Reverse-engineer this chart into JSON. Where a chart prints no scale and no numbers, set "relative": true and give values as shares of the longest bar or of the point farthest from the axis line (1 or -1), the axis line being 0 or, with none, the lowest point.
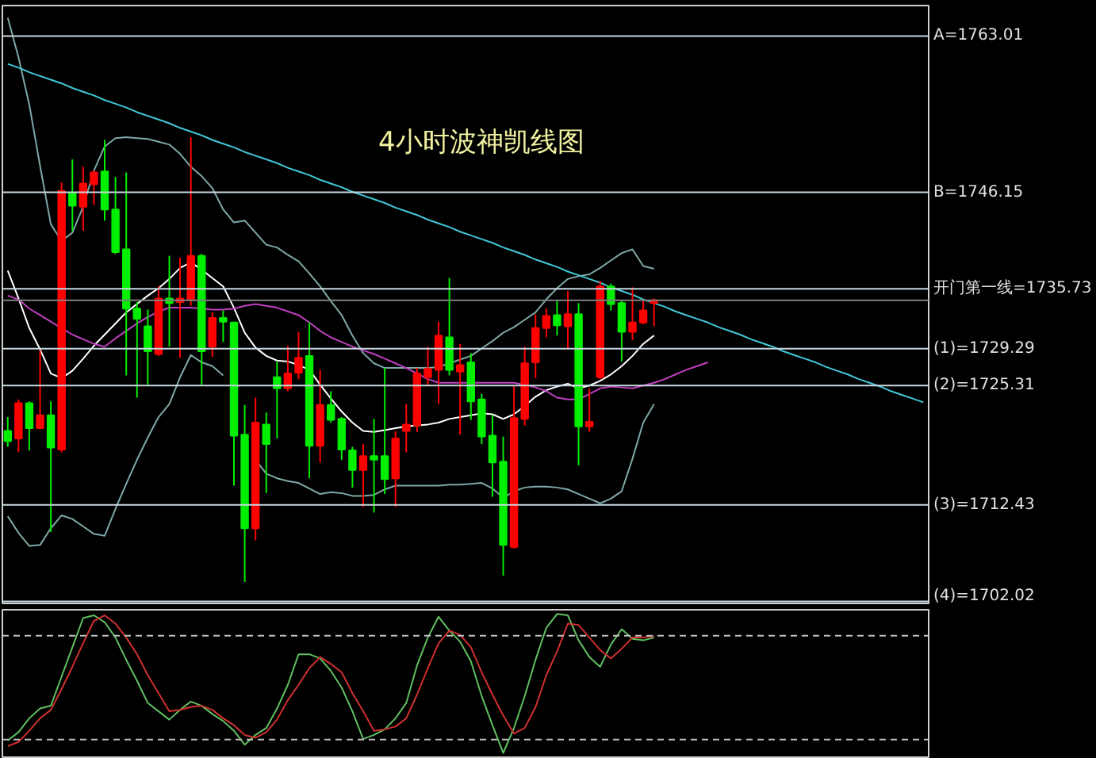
{
  "chart_data": [
    {
      "type": "candlestick",
      "title": "4小时波神凯线图",
      "categories": [
        null,
        null,
        null,
        null,
        null,
        null,
        null,
        null,
        null,
        null,
        null,
        null,
        null,
        null,
        null,
        null,
        null,
        null,
        null,
        null,
        null,
        null,
        null,
        null,
        null,
        null,
        null,
        null,
        null,
        null,
        null,
        null,
        null,
        null,
        null,
        null,
        null,
        null,
        null,
        null,
        null,
        null,
        null,
        null,
        null,
        null,
        null,
        null,
        null,
        null,
        null,
        null,
        null,
        null,
        null,
        null,
        null,
        null,
        null,
        null,
        null,
        null,
        null,
        null,
        null,
        null,
        null,
        null,
        null,
        null,
        null,
        null,
        null,
        null,
        null,
        null,
        null,
        null,
        null,
        null,
        null,
        null,
        null,
        null,
        null,
        null
      ],
      "ohlc": [
        [
          1720.4,
          1721.9,
          1718.7,
          1719.3
        ],
        [
          1719.6,
          1723.8,
          1718.1,
          1723.4
        ],
        [
          1723.4,
          1723.6,
          1718.3,
          1720.7
        ],
        [
          1720.7,
          1729.1,
          1720.6,
          1722.1
        ],
        [
          1722.1,
          1723.6,
          1709.5,
          1718.6
        ],
        [
          1718.4,
          1747.2,
          1718.1,
          1746.3
        ],
        [
          1746.1,
          1749.7,
          1742.0,
          1744.7
        ],
        [
          1744.6,
          1748.9,
          1742.0,
          1747.1
        ],
        [
          1747.0,
          1748.5,
          1744.8,
          1748.3
        ],
        [
          1748.4,
          1751.8,
          1743.1,
          1744.3
        ],
        [
          1744.3,
          1747.8,
          1739.5,
          1739.7
        ],
        [
          1740.0,
          1748.3,
          1726.4,
          1733.6
        ],
        [
          1733.6,
          1734.3,
          1724.0,
          1732.5
        ],
        [
          1731.7,
          1733.5,
          1725.4,
          1729.0
        ],
        [
          1728.7,
          1736.0,
          1728.5,
          1734.7
        ],
        [
          1734.7,
          1739.3,
          1729.5,
          1734.2
        ],
        [
          1734.3,
          1739.1,
          1728.3,
          1734.7
        ],
        [
          1734.6,
          1752.1,
          1733.9,
          1739.3
        ],
        [
          1739.3,
          1739.5,
          1725.4,
          1729.0
        ],
        [
          1729.5,
          1733.2,
          1728.4,
          1732.6
        ],
        [
          1732.6,
          1733.4,
          1730.0,
          1732.2
        ],
        [
          1732.1,
          1732.2,
          1714.5,
          1719.9
        ],
        [
          1720.0,
          1723.2,
          1704.1,
          1709.9
        ],
        [
          1709.9,
          1724.0,
          1708.6,
          1721.3
        ],
        [
          1721.1,
          1722.4,
          1713.7,
          1719.0
        ],
        [
          1726.2,
          1727.9,
          1719.6,
          1725.0
        ],
        [
          1725.0,
          1729.6,
          1724.7,
          1726.6
        ],
        [
          1726.7,
          1731.1,
          1726.0,
          1728.3
        ],
        [
          1728.5,
          1732.1,
          1715.3,
          1718.8
        ],
        [
          1718.8,
          1727.0,
          1717.0,
          1723.2
        ],
        [
          1723.2,
          1724.7,
          1721.3,
          1721.6
        ],
        [
          1721.7,
          1721.9,
          1717.3,
          1718.4
        ],
        [
          1718.3,
          1718.7,
          1714.3,
          1716.2
        ],
        [
          1716.2,
          1719.0,
          1712.2,
          1717.7
        ],
        [
          1717.7,
          1721.7,
          1711.6,
          1717.3
        ],
        [
          1717.7,
          1727.2,
          1713.6,
          1715.2
        ],
        [
          1715.3,
          1720.4,
          1712.2,
          1719.6
        ],
        [
          1720.4,
          1723.3,
          1718.1,
          1721.1
        ],
        [
          1721.0,
          1727.2,
          1720.3,
          1726.6
        ],
        [
          1726.2,
          1729.5,
          1725.3,
          1727.1
        ],
        [
          1727.0,
          1732.2,
          1723.3,
          1730.7
        ],
        [
          1730.5,
          1736.9,
          1726.4,
          1727.0
        ],
        [
          1726.8,
          1729.8,
          1720.0,
          1727.5
        ],
        [
          1727.8,
          1728.8,
          1721.6,
          1723.6
        ],
        [
          1723.8,
          1724.4,
          1719.0,
          1719.8
        ],
        [
          1719.9,
          1722.1,
          1713.3,
          1717.0
        ],
        [
          1717.1,
          1719.8,
          1704.8,
          1708.1
        ],
        [
          1707.9,
          1725.3,
          1707.7,
          1721.8
        ],
        [
          1721.7,
          1729.5,
          1721.0,
          1727.7
        ],
        [
          1727.8,
          1733.0,
          1726.1,
          1731.5
        ],
        [
          1731.5,
          1733.6,
          1730.5,
          1732.8
        ],
        [
          1732.9,
          1734.5,
          1730.7,
          1731.8
        ],
        [
          1731.7,
          1735.5,
          1729.2,
          1733.0
        ],
        [
          1733.0,
          1734.2,
          1716.7,
          1720.9
        ],
        [
          1720.9,
          1725.0,
          1720.3,
          1721.4
        ],
        [
          1726.2,
          1736.6,
          1726.0,
          1736.0
        ],
        [
          1736.0,
          1736.3,
          1733.4,
          1734.1
        ],
        [
          1734.2,
          1734.5,
          1727.9,
          1731.1
        ],
        [
          1731.1,
          1735.9,
          1730.2,
          1732.1
        ],
        [
          1732.1,
          1734.5,
          1731.9,
          1733.4
        ],
        [
          1734.2,
          1734.7,
          1731.7,
          1734.5
        ],
        null,
        null,
        null,
        null,
        null,
        null,
        null,
        null,
        null,
        null,
        null,
        null,
        null,
        null,
        null,
        null,
        null,
        null,
        null,
        null,
        null,
        null,
        null,
        null,
        null
      ],
      "colors": [
        "#00ee00",
        "#ff0000",
        "#00ee00",
        "#ff0000",
        "#00ee00",
        "#ff0000",
        "#00ee00",
        "#ff0000",
        "#ff0000",
        "#00ee00",
        "#00ee00",
        "#00ee00",
        "#00ee00",
        "#00ee00",
        "#ff0000",
        "#00ee00",
        "#ff0000",
        "#ff0000",
        "#00ee00",
        "#ff0000",
        "#00ee00",
        "#00ee00",
        "#00ee00",
        "#ff0000",
        "#00ee00",
        "#00ee00",
        "#ff0000",
        "#ff0000",
        "#00ee00",
        "#ff0000",
        "#00ee00",
        "#00ee00",
        "#00ee00",
        "#ff0000",
        "#00ee00",
        "#00ee00",
        "#ff0000",
        "#ff0000",
        "#ff0000",
        "#ff0000",
        "#ff0000",
        "#00ee00",
        "#ff0000",
        "#00ee00",
        "#00ee00",
        "#00ee00",
        "#00ee00",
        "#ff0000",
        "#ff0000",
        "#ff0000",
        "#ff0000",
        "#00ee00",
        "#ff0000",
        "#00ee00",
        "#ff0000",
        "#ff0000",
        "#00ee00",
        "#00ee00",
        "#ff0000",
        "#ff0000",
        "#ff0000",
        null,
        null,
        null,
        null,
        null,
        null,
        null,
        null,
        null,
        null,
        null,
        null,
        null,
        null,
        null,
        null,
        null,
        null,
        null,
        null,
        null,
        null,
        null,
        null,
        null
      ],
      "series": [
        {
          "type": "line",
          "color": "#7fa8a8",
          "values": [
            1765.0,
            1760.7,
            1755.6,
            1749.0,
            1742.7,
            1740.9,
            1741.8,
            1744.6,
            1748.5,
            1751.1,
            1752.0,
            1752.1,
            1752.0,
            1751.9,
            1751.6,
            1751.3,
            1750.3,
            1748.9,
            1747.9,
            1746.6,
            1744.3,
            1742.9,
            1743.1,
            1741.8,
            1740.5,
            1740.2,
            1739.4,
            1738.7,
            1737.4,
            1736.0,
            1734.4,
            1732.9,
            1730.7,
            1728.8,
            1727.7,
            1727.2,
            1727.2,
            1727.2,
            1727.2,
            1727.2,
            1727.3,
            1727.7,
            1728.1,
            1728.5,
            1729.3,
            1730.1,
            1731.0,
            1731.6,
            1732.4,
            1733.2,
            1734.6,
            1735.8,
            1736.8,
            1737.1,
            1737.3,
            1738.0,
            1738.8,
            1739.6,
            1740.0,
            1738.2,
            1737.9,
            null,
            null,
            null,
            null,
            null,
            null,
            null,
            null,
            null,
            null,
            null,
            null,
            null,
            null,
            null,
            null,
            null,
            null,
            null,
            null,
            null,
            null,
            null,
            null,
            null
          ]
        },
        {
          "type": "line",
          "color": "#ffffff",
          "values": [
            1737.7,
            1734.7,
            1731.5,
            1729.2,
            1726.6,
            1726.1,
            1726.9,
            1728.2,
            1729.6,
            1730.8,
            1732.0,
            1733.2,
            1734.1,
            1735.0,
            1735.8,
            1736.8,
            1738.0,
            1738.6,
            1737.8,
            1736.9,
            1736.0,
            1733.7,
            1731.0,
            1729.4,
            1728.5,
            1728.0,
            1727.9,
            1727.5,
            1727.0,
            1725.4,
            1723.9,
            1722.5,
            1721.3,
            1720.4,
            1720.3,
            1720.5,
            1720.7,
            1720.9,
            1721.0,
            1721.1,
            1721.3,
            1721.7,
            1721.9,
            1722.1,
            1722.3,
            1722.2,
            1721.7,
            1722.2,
            1723.1,
            1724.1,
            1724.8,
            1725.2,
            1725.5,
            1725.0,
            1725.3,
            1725.8,
            1726.5,
            1727.4,
            1728.5,
            1729.8,
            1730.7,
            null,
            null,
            null,
            null,
            null,
            null,
            null,
            null,
            null,
            null,
            null,
            null,
            null,
            null,
            null,
            null,
            null,
            null,
            null,
            null,
            null,
            null,
            null,
            null,
            null
          ]
        },
        {
          "type": "line",
          "color": "#7fa8a8",
          "values": [
            1711.2,
            1709.4,
            1708.0,
            1708.1,
            1709.9,
            1711.3,
            1710.9,
            1710.1,
            1709.3,
            1709.1,
            1712.0,
            1714.7,
            1717.3,
            1719.7,
            1721.9,
            1723.3,
            1726.2,
            1728.6,
            1727.8,
            1727.4,
            1726.4,
            null,
            null,
            1717.3,
            1715.8,
            1715.3,
            1715.0,
            1714.8,
            1714.2,
            1713.6,
            1713.8,
            1713.7,
            1713.4,
            1713.4,
            1713.5,
            1714.1,
            1714.5,
            1714.5,
            1714.5,
            1714.5,
            1714.5,
            1714.6,
            1714.6,
            1714.7,
            1714.8,
            1714.2,
            1713.2,
            1713.9,
            1714.3,
            1714.4,
            1714.4,
            1714.3,
            1714.1,
            1713.6,
            1713.1,
            1712.6,
            1713.1,
            1713.9,
            1717.4,
            1721.3,
            1723.3,
            null,
            null,
            null,
            null,
            null,
            null,
            null,
            null,
            null,
            null,
            null,
            null,
            null,
            null,
            null,
            null,
            null,
            null,
            null,
            null,
            null,
            null,
            null,
            null,
            null
          ]
        },
        {
          "type": "line",
          "color": "#c040c0",
          "values": [
            1735.0,
            1734.6,
            1733.6,
            1732.9,
            1732.2,
            1731.5,
            1730.8,
            1730.3,
            1729.8,
            1729.5,
            1730.4,
            1731.2,
            1732.0,
            1732.7,
            1733.3,
            1733.7,
            1733.7,
            1733.7,
            1733.6,
            1733.5,
            1733.5,
            1733.6,
            1733.9,
            1734.1,
            1733.9,
            1733.7,
            1733.3,
            1732.9,
            1732.1,
            1731.2,
            1730.5,
            1730.0,
            1729.5,
            1729.1,
            1728.7,
            1728.2,
            1727.7,
            1727.2,
            1726.6,
            1726.0,
            1725.6,
            1725.6,
            1725.6,
            1725.6,
            1725.6,
            1725.6,
            1725.6,
            1725.6,
            1725.4,
            1725.1,
            1724.7,
            1724.0,
            1723.8,
            1723.8,
            1724.4,
            1725.0,
            1725.2,
            1725.1,
            1725.0,
            1725.3,
            1725.6,
            1726.0,
            1726.5,
            1727.0,
            1727.4,
            1727.8,
            null,
            null,
            null,
            null,
            null,
            null,
            null,
            null,
            null,
            null,
            null,
            null,
            null,
            null,
            null,
            null,
            null,
            null,
            null,
            null
          ]
        },
        {
          "type": "line",
          "color": "#40c8d8",
          "values": [
            1760.0,
            1759.6,
            1759.1,
            1758.7,
            1758.3,
            1757.9,
            1757.4,
            1757.0,
            1756.6,
            1756.1,
            1755.7,
            1755.3,
            1754.8,
            1754.4,
            1754.0,
            1753.6,
            1753.1,
            1752.7,
            1752.3,
            1751.8,
            1751.4,
            1751.0,
            1750.5,
            1750.1,
            1749.7,
            1749.3,
            1748.8,
            1748.4,
            1748.0,
            1747.5,
            1747.1,
            1746.7,
            1746.2,
            1745.8,
            1745.4,
            1745.0,
            1744.5,
            1744.1,
            1743.7,
            1743.2,
            1742.8,
            1742.4,
            1741.9,
            1741.5,
            1741.1,
            1740.7,
            1740.2,
            1739.8,
            1739.4,
            1738.9,
            1738.5,
            1738.1,
            1737.6,
            1737.2,
            1736.8,
            1736.4,
            1735.9,
            1735.5,
            1735.1,
            1734.6,
            1734.2,
            1733.8,
            1733.3,
            1732.9,
            1732.5,
            1732.1,
            1731.6,
            1731.2,
            1730.8,
            1730.3,
            1729.9,
            1729.5,
            1729.0,
            1728.6,
            1728.2,
            1727.8,
            1727.3,
            1726.9,
            1726.5,
            1726.0,
            1725.6,
            1725.2,
            1724.7,
            1724.3,
            1723.9,
            1723.5
          ]
        }
      ],
      "ylim": [
        1701.8,
        1766.3
      ],
      "yticks": [
        {
          "value": 1763.01,
          "label": "A=1763.01"
        },
        {
          "value": 1746.15,
          "label": "B=1746.15"
        },
        {
          "value": 1735.73,
          "label": "开门第一线=1735.73"
        },
        {
          "value": 1729.29,
          "label": "(1)=1729.29"
        },
        {
          "value": 1725.31,
          "label": "(2)=1725.31"
        },
        {
          "value": 1712.43,
          "label": "(3)=1712.43"
        },
        {
          "value": 1702.02,
          "label": "(4)=1702.02"
        }
      ],
      "grid": "y",
      "tick_labels": "y",
      "ref_lines": [
        {
          "axis": "y",
          "value": 1734.5,
          "color": "#808080"
        }
      ]
    },
    {
      "type": "line",
      "relative": true,
      "tick_labels": false,
      "categories": [
        null,
        null,
        null,
        null,
        null,
        null,
        null,
        null,
        null,
        null,
        null,
        null,
        null,
        null,
        null,
        null,
        null,
        null,
        null,
        null,
        null,
        null,
        null,
        null,
        null,
        null,
        null,
        null,
        null,
        null,
        null,
        null,
        null,
        null,
        null,
        null,
        null,
        null,
        null,
        null,
        null,
        null,
        null,
        null,
        null,
        null,
        null,
        null,
        null,
        null,
        null,
        null,
        null,
        null,
        null,
        null,
        null,
        null,
        null,
        null,
        null,
        null,
        null,
        null,
        null,
        null,
        null,
        null,
        null,
        null,
        null,
        null,
        null,
        null,
        null,
        null,
        null,
        null,
        null,
        null,
        null,
        null,
        null,
        null,
        null,
        null
      ],
      "series": [
        {
          "color": "#60c060",
          "values": [
            0.09,
            0.15,
            0.25,
            0.32,
            0.34,
            0.55,
            0.76,
            0.97,
            0.99,
            0.94,
            0.83,
            0.67,
            0.52,
            0.36,
            0.3,
            0.24,
            0.31,
            0.37,
            0.34,
            0.28,
            0.23,
            0.16,
            0.06,
            0.13,
            0.18,
            0.32,
            0.49,
            0.71,
            0.71,
            0.68,
            0.59,
            0.47,
            0.3,
            0.1,
            0.13,
            0.17,
            0.25,
            0.36,
            0.63,
            0.83,
            0.98,
            0.88,
            0.8,
            0.66,
            0.41,
            0.2,
            0.0,
            0.18,
            0.41,
            0.67,
            0.9,
            1.0,
            0.99,
            0.81,
            0.69,
            0.62,
            0.78,
            0.89,
            0.82,
            0.81,
            0.83,
            null,
            null,
            null,
            null,
            null,
            null,
            null,
            null,
            null,
            null,
            null,
            null,
            null,
            null,
            null,
            null,
            null,
            null,
            null,
            null,
            null,
            null,
            null,
            null,
            null
          ]
        },
        {
          "color": "#d03030",
          "values": [
            0.05,
            0.08,
            0.16,
            0.25,
            0.31,
            0.46,
            0.62,
            0.79,
            0.95,
            0.99,
            0.93,
            0.83,
            0.71,
            0.56,
            0.43,
            0.3,
            0.31,
            0.33,
            0.34,
            0.31,
            0.25,
            0.2,
            0.13,
            0.11,
            0.15,
            0.24,
            0.38,
            0.49,
            0.61,
            0.69,
            0.64,
            0.58,
            0.43,
            0.3,
            0.16,
            0.17,
            0.19,
            0.25,
            0.42,
            0.61,
            0.79,
            0.88,
            0.85,
            0.76,
            0.58,
            0.42,
            0.27,
            0.14,
            0.18,
            0.33,
            0.56,
            0.73,
            0.93,
            0.92,
            0.83,
            0.74,
            0.68,
            0.75,
            0.83,
            0.83,
            0.84,
            null,
            null,
            null,
            null,
            null,
            null,
            null,
            null,
            null,
            null,
            null,
            null,
            null,
            null,
            null,
            null,
            null,
            null,
            null,
            null,
            null,
            null,
            null,
            null,
            null
          ]
        }
      ],
      "ref_lines": [
        {
          "axis": "y",
          "value": 0.844,
          "color": "#c0c0c0",
          "line_style": "dashed"
        },
        {
          "axis": "y",
          "value": 0.097,
          "color": "#c0c0c0",
          "line_style": "dashed"
        }
      ]
    }
  ]
}
